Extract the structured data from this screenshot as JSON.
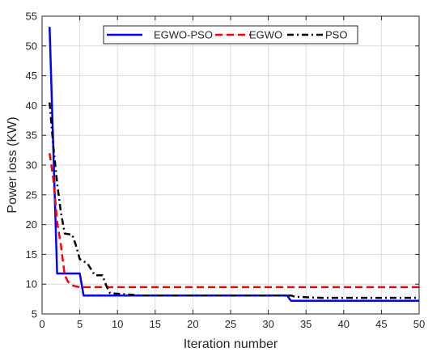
{
  "chart_data": {
    "type": "line",
    "title": "",
    "xlabel": "Iteration number",
    "ylabel": "Power loss (KW)",
    "xlim": [
      0,
      50
    ],
    "ylim": [
      5,
      55
    ],
    "xticks": [
      0,
      5,
      10,
      15,
      20,
      25,
      30,
      35,
      40,
      45,
      50
    ],
    "yticks": [
      5,
      10,
      15,
      20,
      25,
      30,
      35,
      40,
      45,
      50,
      55
    ],
    "grid": true,
    "legend_position": "top-center",
    "series": [
      {
        "name": "EGWO-PSO",
        "color": "#0000ff",
        "style": "solid",
        "x": [
          1,
          2,
          2,
          5,
          5,
          5.5,
          5.5,
          32.5,
          33,
          50
        ],
        "y": [
          53.2,
          11.8,
          11.8,
          11.8,
          11.8,
          8.1,
          8.1,
          8.1,
          7.2,
          7.2
        ]
      },
      {
        "name": "EGWO",
        "color": "#ff0000",
        "style": "dashed",
        "x": [
          1,
          1.5,
          2,
          2.5,
          3,
          3.5,
          4,
          4.5,
          5,
          50
        ],
        "y": [
          32.0,
          27.5,
          20.5,
          16.5,
          11.5,
          10.3,
          9.8,
          9.6,
          9.5,
          9.5
        ]
      },
      {
        "name": "PSO",
        "color": "#000000",
        "style": "dashdot",
        "x": [
          1,
          1.5,
          2,
          2.5,
          3,
          4,
          4.5,
          5,
          6,
          7,
          8,
          8.5,
          9,
          11,
          12,
          13,
          20,
          33,
          33.5,
          37,
          50
        ],
        "y": [
          40.5,
          33.0,
          27.0,
          22.0,
          18.5,
          18.3,
          16.5,
          14.2,
          13.5,
          11.5,
          11.5,
          9.8,
          8.5,
          8.3,
          8.2,
          8.1,
          8.1,
          8.1,
          7.9,
          7.7,
          7.7
        ]
      }
    ]
  }
}
